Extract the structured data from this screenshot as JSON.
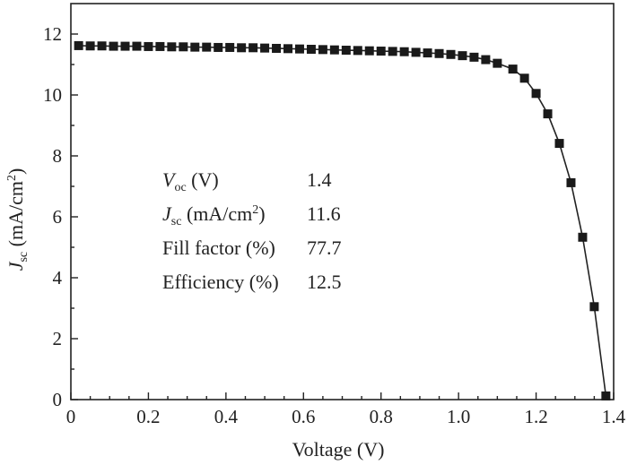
{
  "chart_data": {
    "type": "line",
    "xlabel": "Voltage (V)",
    "ylabel": {
      "symbol": "J",
      "sub": "sc",
      "unit_pre": " (mA/cm",
      "unit_sup": "2",
      "unit_post": ")"
    },
    "xlim": [
      0,
      1.4
    ],
    "ylim": [
      0,
      13
    ],
    "x_ticks": [
      0,
      0.2,
      0.4,
      0.6,
      0.8,
      1.0,
      1.2,
      1.4
    ],
    "x_tick_labels": [
      "0",
      "0.2",
      "0.4",
      "0.6",
      "0.8",
      "1.0",
      "1.2",
      "1.4"
    ],
    "y_ticks": [
      0,
      2,
      4,
      6,
      8,
      10,
      12
    ],
    "y_tick_labels": [
      "0",
      "2",
      "4",
      "6",
      "8",
      "10",
      "12"
    ],
    "grid": false,
    "series": [
      {
        "marker": "square",
        "color": "#1a1a1a",
        "x": [
          0.02,
          0.05,
          0.08,
          0.11,
          0.14,
          0.17,
          0.2,
          0.23,
          0.26,
          0.29,
          0.32,
          0.35,
          0.38,
          0.41,
          0.44,
          0.47,
          0.5,
          0.53,
          0.56,
          0.59,
          0.62,
          0.65,
          0.68,
          0.71,
          0.74,
          0.77,
          0.8,
          0.83,
          0.86,
          0.89,
          0.92,
          0.95,
          0.98,
          1.01,
          1.04,
          1.07,
          1.1,
          1.14,
          1.17,
          1.2,
          1.23,
          1.26,
          1.29,
          1.32,
          1.35,
          1.38
        ],
        "y": [
          11.62,
          11.61,
          11.61,
          11.6,
          11.6,
          11.6,
          11.59,
          11.59,
          11.58,
          11.58,
          11.57,
          11.57,
          11.56,
          11.56,
          11.55,
          11.55,
          11.54,
          11.53,
          11.52,
          11.51,
          11.5,
          11.49,
          11.48,
          11.47,
          11.46,
          11.45,
          11.44,
          11.43,
          11.42,
          11.4,
          11.38,
          11.36,
          11.33,
          11.29,
          11.24,
          11.16,
          11.04,
          10.85,
          10.55,
          10.05,
          9.38,
          8.41,
          7.12,
          5.33,
          3.05,
          0.12
        ]
      }
    ],
    "annotation_rows": [
      {
        "name_symbol": "V",
        "name_sub": "oc",
        "name_rest": " (V)",
        "value": "1.4"
      },
      {
        "name_symbol": "J",
        "name_sub": "sc",
        "name_rest": " (mA/cm",
        "name_sup": "2",
        "name_end": ")",
        "value": "11.6"
      },
      {
        "name_symbol": "",
        "name_sub": "",
        "name_rest": "Fill factor (%)",
        "value": "77.7"
      },
      {
        "name_symbol": "",
        "name_sub": "",
        "name_rest": "Efficiency (%)",
        "value": "12.5"
      }
    ]
  }
}
